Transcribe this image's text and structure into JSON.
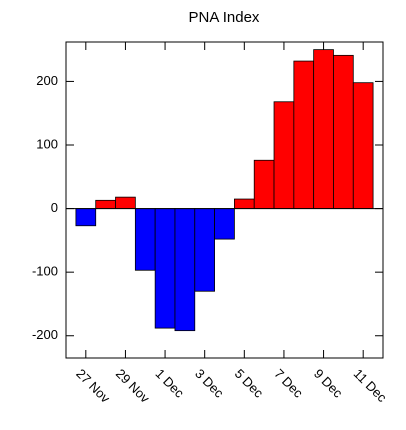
{
  "chart_data": {
    "type": "bar",
    "title": "PNA Index",
    "categories": [
      "27 Nov",
      null,
      "29 Nov",
      null,
      "1 Dec",
      null,
      "3 Dec",
      null,
      "5 Dec",
      null,
      "7 Dec",
      null,
      "9 Dec",
      null,
      "11 Dec"
    ],
    "values": [
      -27,
      13,
      18,
      -97,
      -188,
      -192,
      -130,
      -48,
      15,
      76,
      168,
      232,
      250,
      241,
      198
    ],
    "positive_color": "#ff0000",
    "negative_color": "#0000ff",
    "ylim": [
      -235,
      262
    ],
    "yticks": [
      -200,
      -100,
      0,
      100,
      200
    ],
    "grid": false
  }
}
